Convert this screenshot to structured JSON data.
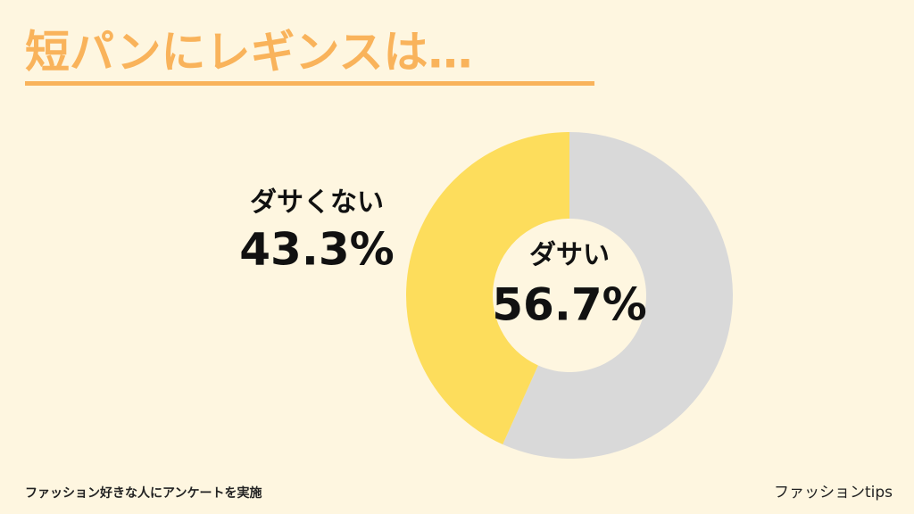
{
  "chart_data": {
    "type": "donut",
    "title": "短パンにレギンスは…",
    "categories": [
      "ダサい",
      "ダサくない"
    ],
    "values": [
      56.7,
      43.3
    ],
    "value_labels": [
      "56.7%",
      "43.3%"
    ],
    "colors": [
      "#d9d9d9",
      "#fddd5c"
    ],
    "note": "ファッション好きな人にアンケートを実施",
    "source": "ファッションtips"
  }
}
